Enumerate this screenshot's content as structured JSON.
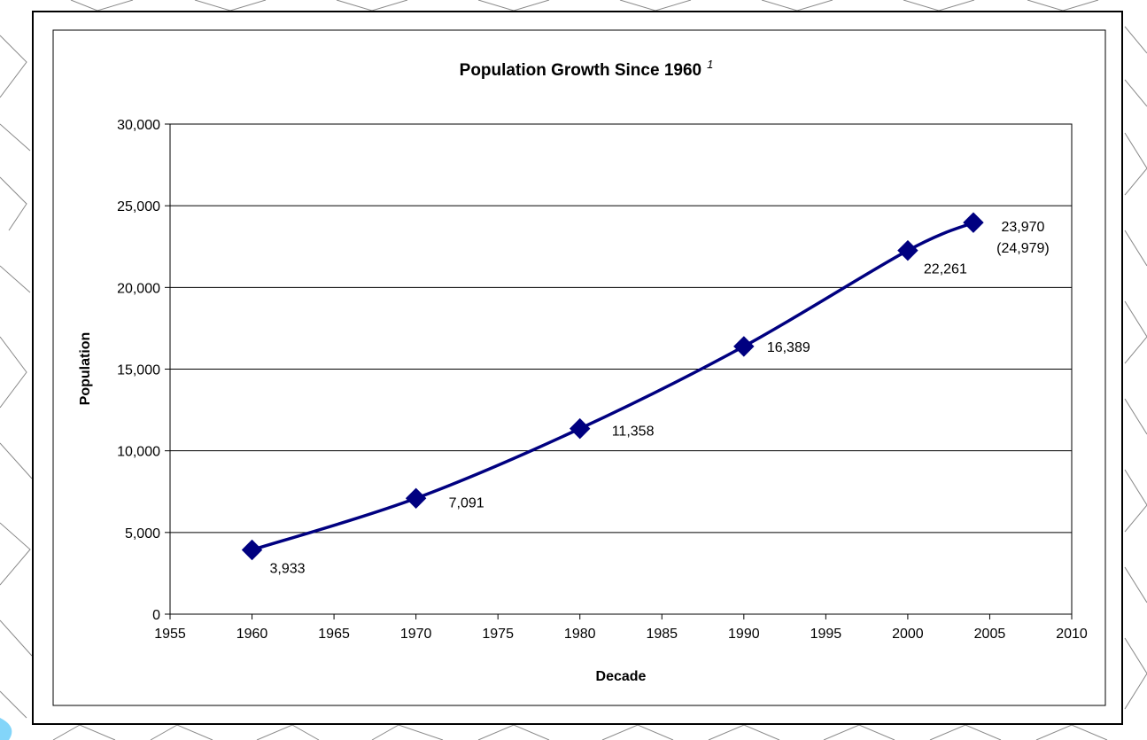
{
  "chart_data": {
    "type": "line",
    "title": "Population Growth Since 1960",
    "title_footnote": "1",
    "xlabel": "Decade",
    "ylabel": "Population",
    "x": [
      1960,
      1970,
      1980,
      1990,
      2000,
      2004
    ],
    "series": [
      {
        "values": [
          3933,
          7091,
          11358,
          16389,
          22261,
          23970
        ],
        "color": "#000080"
      }
    ],
    "data_labels": [
      "3,933",
      "7,091",
      "11,358",
      "16,389",
      "22,261",
      "23,970"
    ],
    "extra_label": "(24,979)",
    "xlim": [
      1955,
      2010
    ],
    "ylim": [
      0,
      30000
    ],
    "x_ticks": [
      "1955",
      "1960",
      "1965",
      "1970",
      "1975",
      "1980",
      "1985",
      "1990",
      "1995",
      "2000",
      "2005",
      "2010"
    ],
    "y_ticks": [
      "0",
      "5,000",
      "10,000",
      "15,000",
      "20,000",
      "25,000",
      "30,000"
    ],
    "grid": true,
    "marker": "diamond"
  }
}
